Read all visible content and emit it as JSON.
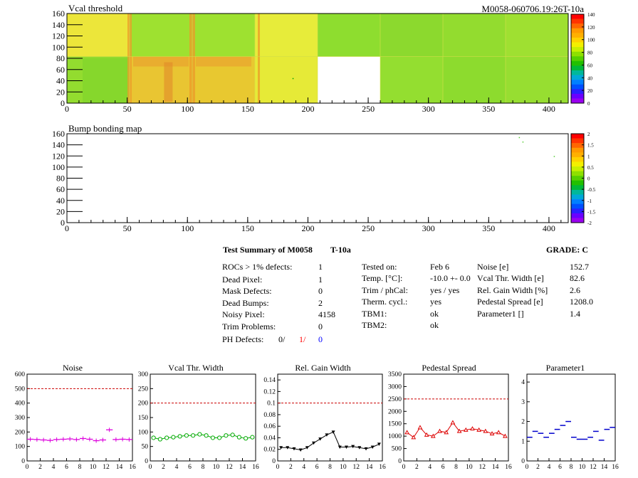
{
  "module_id": "M0058-060706.19:26T-10a",
  "map1": {
    "title": "Vcal threshold",
    "xticks": [
      0,
      50,
      100,
      150,
      200,
      250,
      300,
      350,
      400
    ],
    "yticks": [
      0,
      20,
      40,
      60,
      80,
      100,
      120,
      140,
      160
    ],
    "palette_labels": [
      "140",
      "120",
      "100",
      "80",
      "60",
      "40",
      "20",
      "0"
    ]
  },
  "map2": {
    "title": "Bump bonding map",
    "xticks": [
      0,
      50,
      100,
      150,
      200,
      250,
      300,
      350,
      400
    ],
    "yticks": [
      0,
      20,
      40,
      60,
      80,
      100,
      120,
      140,
      160
    ],
    "palette_labels": [
      "2",
      "1.5",
      "1",
      "0.5",
      "0",
      "-0.5",
      "-1",
      "-1.5",
      "-2"
    ]
  },
  "summary": {
    "heading": "Test Summary of M0058",
    "tag": "T-10a",
    "grade": "GRADE:  C",
    "col1": [
      {
        "label": "ROCs > 1% defects:",
        "value": "1"
      },
      {
        "label": "Dead Pixel:",
        "value": "1"
      },
      {
        "label": "Mask Defects:",
        "value": "0"
      },
      {
        "label": "Dead Bumps:",
        "value": "2"
      },
      {
        "label": "Noisy Pixel:",
        "value": "4158"
      },
      {
        "label": "Trim Problems:",
        "value": "0"
      }
    ],
    "ph_label": "PH Defects:",
    "ph_values": [
      "0/",
      "1/",
      "0"
    ],
    "ph_colors": [
      "#000000",
      "#ff0000",
      "#0000ff"
    ],
    "col2": [
      {
        "label": "Tested on:",
        "value": "Feb 6"
      },
      {
        "label": "Temp. [°C]:",
        "value": "-10.0 +- 0.0"
      },
      {
        "label": "Trim / phCal:",
        "value": "yes / yes"
      },
      {
        "label": "Therm. cycl.:",
        "value": "yes"
      },
      {
        "label": "TBM1:",
        "value": "ok"
      },
      {
        "label": "TBM2:",
        "value": "ok"
      }
    ],
    "col3": [
      {
        "label": "Noise [e]",
        "value": "152.7"
      },
      {
        "label": "Vcal Thr. Width [e]",
        "value": "82.6"
      },
      {
        "label": "Rel. Gain Width [%]",
        "value": "2.6"
      },
      {
        "label": "Pedestal Spread [e]",
        "value": "1208.0"
      },
      {
        "label": "Parameter1 []",
        "value": "1.4"
      }
    ]
  },
  "chart_data": [
    {
      "type": "line",
      "title": "Noise",
      "marker": "cross",
      "color": "#dd00dd",
      "x": [
        0,
        1,
        2,
        3,
        4,
        5,
        6,
        7,
        8,
        9,
        10,
        11,
        12,
        13,
        14,
        15
      ],
      "values": [
        150,
        148,
        145,
        142,
        148,
        150,
        152,
        148,
        155,
        150,
        140,
        145,
        215,
        148,
        150,
        148
      ],
      "connect": false,
      "ylim": [
        0,
        600
      ],
      "yticks": [
        0,
        100,
        200,
        300,
        400,
        500,
        600
      ],
      "xticks": [
        0,
        2,
        4,
        6,
        8,
        10,
        12,
        14,
        16
      ],
      "threshold": 500
    },
    {
      "type": "line",
      "title": "Vcal Thr. Width",
      "marker": "circle",
      "color": "#00aa00",
      "x": [
        0,
        1,
        2,
        3,
        4,
        5,
        6,
        7,
        8,
        9,
        10,
        11,
        12,
        13,
        14,
        15
      ],
      "values": [
        80,
        75,
        80,
        82,
        85,
        88,
        88,
        92,
        88,
        80,
        80,
        88,
        90,
        82,
        78,
        82
      ],
      "connect": true,
      "ylim": [
        0,
        300
      ],
      "yticks": [
        0,
        50,
        100,
        150,
        200,
        250,
        300
      ],
      "xticks": [
        0,
        2,
        4,
        6,
        8,
        10,
        12,
        14,
        16
      ],
      "threshold": 200
    },
    {
      "type": "line",
      "title": "Rel. Gain Width",
      "marker": "triangle-down",
      "color": "#000000",
      "x": [
        0,
        1,
        2,
        3,
        4,
        5,
        6,
        7,
        8,
        9,
        10,
        11,
        12,
        13,
        14,
        15
      ],
      "values": [
        0.023,
        0.023,
        0.021,
        0.019,
        0.023,
        0.031,
        0.038,
        0.045,
        0.05,
        0.024,
        0.024,
        0.025,
        0.023,
        0.021,
        0.024,
        0.029
      ],
      "connect": true,
      "ylim": [
        0,
        0.15
      ],
      "yticks": [
        0,
        0.02,
        0.04,
        0.06,
        0.08,
        0.1,
        0.12,
        0.14
      ],
      "xticks": [
        0,
        2,
        4,
        6,
        8,
        10,
        12,
        14,
        16
      ],
      "threshold": 0.1
    },
    {
      "type": "line",
      "title": "Pedestal Spread",
      "marker": "triangle-up",
      "color": "#dd0000",
      "x": [
        0,
        1,
        2,
        3,
        4,
        5,
        6,
        7,
        8,
        9,
        10,
        11,
        12,
        13,
        14,
        15
      ],
      "values": [
        1150,
        950,
        1350,
        1050,
        1000,
        1200,
        1150,
        1550,
        1200,
        1250,
        1300,
        1250,
        1200,
        1100,
        1150,
        1000
      ],
      "connect": true,
      "ylim": [
        0,
        3500
      ],
      "yticks": [
        0,
        500,
        1000,
        1500,
        2000,
        2500,
        3000,
        3500
      ],
      "xticks": [
        0,
        2,
        4,
        6,
        8,
        10,
        12,
        14,
        16
      ],
      "threshold": 2500
    },
    {
      "type": "line",
      "title": "Parameter1",
      "marker": "hbar",
      "color": "#0000cc",
      "x": [
        0,
        1,
        2,
        3,
        4,
        5,
        6,
        7,
        8,
        9,
        10,
        11,
        12,
        13,
        14,
        15
      ],
      "values": [
        1.2,
        1.5,
        1.4,
        1.2,
        1.4,
        1.6,
        1.8,
        2.0,
        1.2,
        1.1,
        1.1,
        1.2,
        1.5,
        1.05,
        1.6,
        1.7
      ],
      "connect": false,
      "ylim": [
        0,
        4.4
      ],
      "yticks": [
        0,
        1,
        2,
        3,
        4
      ],
      "xticks": [
        0,
        2,
        4,
        6,
        8,
        10,
        12,
        14,
        16
      ],
      "threshold": null
    }
  ]
}
